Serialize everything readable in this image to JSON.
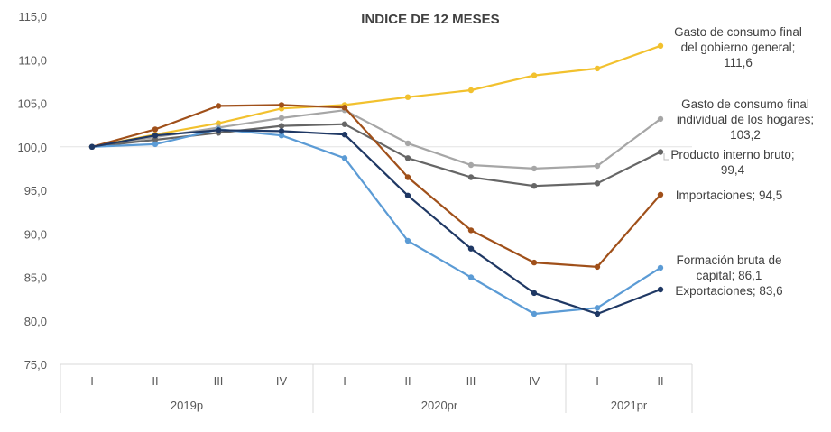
{
  "chart_data": {
    "type": "line",
    "title": "INDICE DE 12 MESES",
    "xlabel": "",
    "ylabel": "",
    "ylim": [
      75,
      115
    ],
    "yticks": [
      "75,0",
      "80,0",
      "85,0",
      "90,0",
      "95,0",
      "100,0",
      "105,0",
      "110,0",
      "115,0"
    ],
    "grid": "horizontal line at 100 only",
    "categories": [
      "I",
      "II",
      "III",
      "IV",
      "I",
      "II",
      "III",
      "IV",
      "I",
      "II"
    ],
    "year_groups": [
      {
        "label": "2019p",
        "count": 4
      },
      {
        "label": "2020pr",
        "count": 4
      },
      {
        "label": "2021pr",
        "count": 2
      }
    ],
    "series": [
      {
        "name": "Gasto de consumo final del gobierno general",
        "color": "#F2C12E",
        "values": [
          100.0,
          101.4,
          102.7,
          104.4,
          104.8,
          105.7,
          106.5,
          108.2,
          109.0,
          111.6
        ],
        "label_lines": [
          "Gasto de consumo final",
          "del gobierno general;",
          "111,6"
        ]
      },
      {
        "name": "Gasto de consumo final individual de los hogares",
        "color": "#A6A6A6",
        "values": [
          100.0,
          101.1,
          102.2,
          103.3,
          104.2,
          100.4,
          97.9,
          97.5,
          97.8,
          103.2
        ],
        "label_lines": [
          "Gasto de consumo final",
          "individual de los hogares;",
          "103,2"
        ]
      },
      {
        "name": "Producto interno bruto",
        "color": "#666666",
        "values": [
          100.0,
          100.8,
          101.6,
          102.4,
          102.6,
          98.7,
          96.5,
          95.5,
          95.8,
          99.4
        ],
        "label_lines": [
          "Producto interno bruto;",
          "99,4"
        ]
      },
      {
        "name": "Importaciones",
        "color": "#A0501A",
        "values": [
          100.0,
          102.0,
          104.7,
          104.8,
          104.5,
          96.5,
          90.4,
          86.7,
          86.2,
          94.5
        ],
        "label_lines": [
          "Importaciones;  94,5"
        ]
      },
      {
        "name": "Formación bruta de capital",
        "color": "#5B9BD5",
        "values": [
          100.0,
          100.3,
          102.0,
          101.3,
          98.7,
          89.2,
          85.0,
          80.8,
          81.5,
          86.1
        ],
        "label_lines": [
          "Formación bruta de",
          "capital;  86,1"
        ]
      },
      {
        "name": "Exportaciones",
        "color": "#1F3864",
        "values": [
          100.0,
          101.3,
          101.9,
          101.8,
          101.4,
          94.4,
          88.3,
          83.2,
          80.8,
          83.6
        ],
        "label_lines": [
          "Exportaciones;  83,6"
        ]
      }
    ]
  }
}
